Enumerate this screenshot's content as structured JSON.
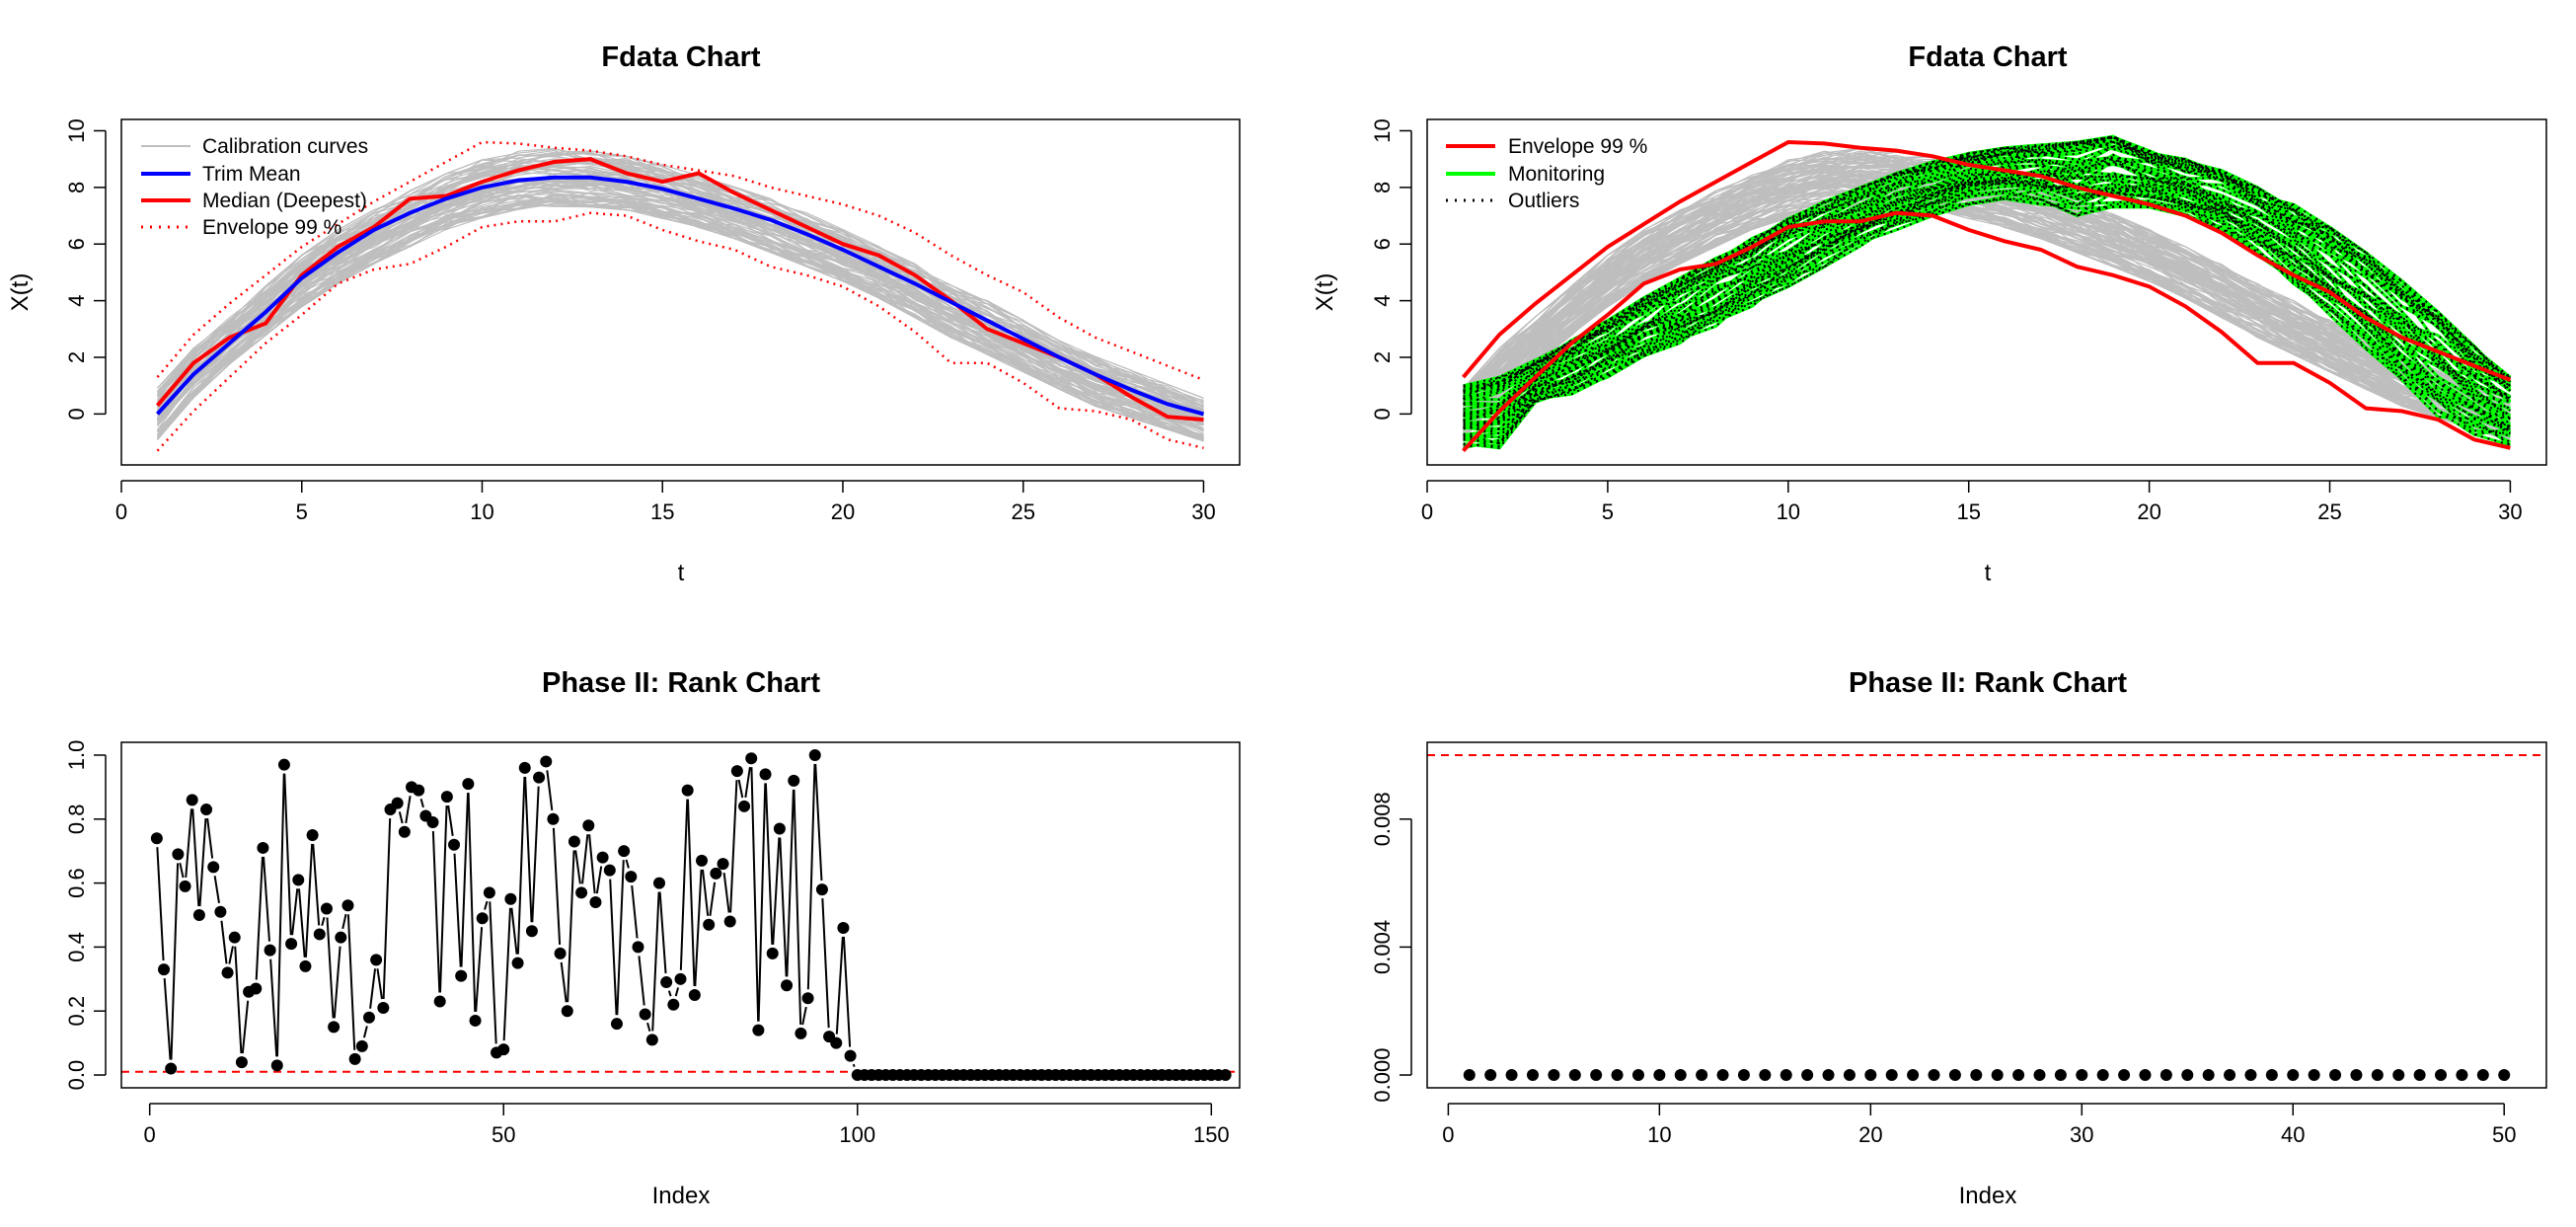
{
  "colors": {
    "calibration": "#bebebe",
    "trim_mean": "#0000ff",
    "median": "#ff0000",
    "envelope": "#ff0000",
    "monitoring": "#00ff00",
    "outliers": "#000000",
    "limit_line": "#ff0000",
    "points": "#000000"
  },
  "chart_data": [
    {
      "type": "line",
      "title": "Fdata Chart",
      "xlabel": "t",
      "ylabel": "X(t)",
      "xlim": [
        0,
        31
      ],
      "ylim": [
        -1.8,
        10.4
      ],
      "xticks": [
        0,
        5,
        10,
        15,
        20,
        25,
        30
      ],
      "yticks": [
        0,
        2,
        4,
        6,
        8,
        10
      ],
      "legend_position": "top-left",
      "legend": [
        "Calibration curves",
        "Trim Mean",
        "Median (Deepest)",
        "Envelope 99 %"
      ],
      "x": [
        1,
        2,
        3,
        4,
        5,
        6,
        7,
        8,
        9,
        10,
        11,
        12,
        13,
        14,
        15,
        16,
        17,
        18,
        19,
        20,
        21,
        22,
        23,
        24,
        25,
        26,
        27,
        28,
        29,
        30
      ],
      "calibration_band": {
        "lower": [
          -1.2,
          0.3,
          1.5,
          2.5,
          3.5,
          4.3,
          5.0,
          5.6,
          6.2,
          6.6,
          6.9,
          7.0,
          7.0,
          6.9,
          6.6,
          6.3,
          5.9,
          5.4,
          4.9,
          4.4,
          3.8,
          3.1,
          2.4,
          1.8,
          1.2,
          0.6,
          0.0,
          -0.4,
          -0.8,
          -1.2
        ],
        "upper": [
          1.2,
          2.6,
          3.7,
          4.8,
          5.9,
          6.8,
          7.5,
          8.2,
          8.8,
          9.3,
          9.6,
          9.7,
          9.6,
          9.4,
          9.1,
          8.7,
          8.3,
          7.9,
          7.4,
          6.8,
          6.2,
          5.6,
          4.9,
          4.3,
          3.6,
          2.9,
          2.3,
          1.8,
          1.3,
          0.8
        ]
      },
      "series": [
        {
          "name": "Trim Mean",
          "values": [
            0.0,
            1.4,
            2.5,
            3.6,
            4.8,
            5.7,
            6.5,
            7.1,
            7.6,
            8.0,
            8.25,
            8.35,
            8.35,
            8.2,
            7.95,
            7.6,
            7.25,
            6.85,
            6.35,
            5.8,
            5.2,
            4.6,
            3.95,
            3.3,
            2.65,
            2.0,
            1.4,
            0.85,
            0.35,
            0.0
          ]
        },
        {
          "name": "Median (Deepest)",
          "values": [
            0.3,
            1.8,
            2.7,
            3.2,
            4.9,
            5.9,
            6.6,
            7.6,
            7.7,
            8.2,
            8.6,
            8.9,
            9.0,
            8.5,
            8.2,
            8.5,
            7.8,
            7.2,
            6.6,
            6.0,
            5.6,
            4.9,
            4.0,
            3.0,
            2.5,
            2.0,
            1.4,
            0.6,
            -0.1,
            -0.2
          ]
        },
        {
          "name": "Envelope 99 % (upper)",
          "values": [
            1.3,
            2.8,
            3.9,
            4.9,
            5.9,
            6.7,
            7.5,
            8.2,
            8.9,
            9.6,
            9.55,
            9.4,
            9.3,
            9.1,
            8.8,
            8.6,
            8.4,
            8.0,
            7.7,
            7.4,
            7.0,
            6.4,
            5.6,
            4.9,
            4.3,
            3.4,
            2.7,
            2.2,
            1.7,
            1.2
          ]
        },
        {
          "name": "Envelope 99 % (lower)",
          "values": [
            -1.3,
            0.1,
            1.3,
            2.5,
            3.5,
            4.6,
            5.1,
            5.3,
            5.9,
            6.6,
            6.8,
            6.8,
            7.1,
            7.0,
            6.5,
            6.1,
            5.8,
            5.2,
            4.9,
            4.5,
            3.8,
            2.9,
            1.8,
            1.8,
            1.1,
            0.2,
            0.1,
            -0.2,
            -0.9,
            -1.2
          ]
        }
      ]
    },
    {
      "type": "line",
      "title": "Fdata Chart",
      "xlabel": "t",
      "ylabel": "X(t)",
      "xlim": [
        0,
        31
      ],
      "ylim": [
        -1.8,
        10.4
      ],
      "xticks": [
        0,
        5,
        10,
        15,
        20,
        25,
        30
      ],
      "yticks": [
        0,
        2,
        4,
        6,
        8,
        10
      ],
      "legend_position": "top-left",
      "legend": [
        "Envelope 99 %",
        "Monitoring",
        "Outliers"
      ],
      "x": [
        1,
        2,
        3,
        4,
        5,
        6,
        7,
        8,
        9,
        10,
        11,
        12,
        13,
        14,
        15,
        16,
        17,
        18,
        19,
        20,
        21,
        22,
        23,
        24,
        25,
        26,
        27,
        28,
        29,
        30
      ],
      "calibration_band": {
        "lower": [
          -1.2,
          0.3,
          1.5,
          2.5,
          3.5,
          4.3,
          5.0,
          5.6,
          6.2,
          6.6,
          6.9,
          7.0,
          7.0,
          6.9,
          6.6,
          6.3,
          5.9,
          5.4,
          4.9,
          4.4,
          3.8,
          3.1,
          2.4,
          1.8,
          1.2,
          0.6,
          0.0,
          -0.4,
          -0.8,
          -1.2
        ],
        "upper": [
          1.2,
          2.6,
          3.7,
          4.8,
          5.9,
          6.8,
          7.5,
          8.2,
          8.8,
          9.3,
          9.6,
          9.7,
          9.6,
          9.4,
          9.1,
          8.7,
          8.3,
          7.9,
          7.4,
          6.8,
          6.2,
          5.6,
          4.9,
          4.3,
          3.6,
          2.9,
          2.3,
          1.8,
          1.3,
          0.8
        ]
      },
      "monitoring_band": {
        "lower": [
          -1.2,
          -1.2,
          0.3,
          0.7,
          1.3,
          1.9,
          2.5,
          3.1,
          3.8,
          4.5,
          5.2,
          5.9,
          6.5,
          7.0,
          7.4,
          7.6,
          7.4,
          7.0,
          7.3,
          7.3,
          7.0,
          6.4,
          5.6,
          4.6,
          3.5,
          2.3,
          1.1,
          -0.1,
          -0.8,
          -1.1
        ],
        "upper": [
          1.0,
          1.3,
          1.9,
          2.6,
          3.3,
          4.1,
          4.8,
          5.5,
          6.2,
          6.9,
          7.5,
          8.0,
          8.5,
          8.9,
          9.2,
          9.4,
          9.5,
          9.6,
          9.8,
          9.3,
          9.0,
          8.6,
          8.0,
          7.4,
          6.6,
          5.7,
          4.7,
          3.6,
          2.4,
          1.3
        ]
      },
      "series": [
        {
          "name": "Envelope 99 % (upper)",
          "values": [
            1.3,
            2.8,
            3.9,
            4.9,
            5.9,
            6.7,
            7.5,
            8.2,
            8.9,
            9.6,
            9.55,
            9.4,
            9.3,
            9.1,
            8.8,
            8.6,
            8.4,
            8.0,
            7.7,
            7.4,
            7.0,
            6.4,
            5.6,
            4.9,
            4.3,
            3.4,
            2.7,
            2.2,
            1.7,
            1.2
          ]
        },
        {
          "name": "Envelope 99 % (lower)",
          "values": [
            -1.3,
            0.1,
            1.3,
            2.5,
            3.5,
            4.6,
            5.1,
            5.3,
            5.9,
            6.6,
            6.8,
            6.8,
            7.1,
            7.0,
            6.5,
            6.1,
            5.8,
            5.2,
            4.9,
            4.5,
            3.8,
            2.9,
            1.8,
            1.8,
            1.1,
            0.2,
            0.1,
            -0.2,
            -0.9,
            -1.2
          ]
        }
      ]
    },
    {
      "type": "scatter",
      "title": "Phase II: Rank Chart",
      "xlabel": "Index",
      "ylabel": "",
      "xlim": [
        -4,
        154
      ],
      "ylim": [
        -0.04,
        1.04
      ],
      "xticks": [
        0,
        50,
        100,
        150
      ],
      "yticks": [
        0.0,
        0.2,
        0.4,
        0.6,
        0.8,
        1.0
      ],
      "ytick_labels": [
        "0.0",
        "0.2",
        "0.4",
        "0.6",
        "0.8",
        "1.0"
      ],
      "control_limit": 0.01,
      "values": [
        0.74,
        0.33,
        0.02,
        0.69,
        0.59,
        0.86,
        0.5,
        0.83,
        0.65,
        0.51,
        0.32,
        0.43,
        0.04,
        0.26,
        0.27,
        0.71,
        0.39,
        0.03,
        0.97,
        0.41,
        0.61,
        0.34,
        0.75,
        0.44,
        0.52,
        0.15,
        0.43,
        0.53,
        0.05,
        0.09,
        0.18,
        0.36,
        0.21,
        0.83,
        0.85,
        0.76,
        0.9,
        0.89,
        0.81,
        0.79,
        0.23,
        0.87,
        0.72,
        0.31,
        0.91,
        0.17,
        0.49,
        0.57,
        0.07,
        0.08,
        0.55,
        0.35,
        0.96,
        0.45,
        0.93,
        0.98,
        0.8,
        0.38,
        0.2,
        0.73,
        0.57,
        0.78,
        0.54,
        0.68,
        0.64,
        0.16,
        0.7,
        0.62,
        0.4,
        0.19,
        0.11,
        0.6,
        0.29,
        0.22,
        0.3,
        0.89,
        0.25,
        0.67,
        0.47,
        0.63,
        0.66,
        0.48,
        0.95,
        0.84,
        0.99,
        0.14,
        0.94,
        0.38,
        0.77,
        0.28,
        0.92,
        0.13,
        0.24,
        1.0,
        0.58,
        0.12,
        0.1,
        0.46,
        0.06,
        0,
        0,
        0,
        0,
        0,
        0,
        0,
        0,
        0,
        0,
        0,
        0,
        0,
        0,
        0,
        0,
        0,
        0,
        0,
        0,
        0,
        0,
        0,
        0,
        0,
        0,
        0,
        0,
        0,
        0,
        0,
        0,
        0,
        0,
        0,
        0,
        0,
        0,
        0,
        0,
        0,
        0,
        0,
        0,
        0,
        0,
        0,
        0,
        0,
        0,
        0,
        0,
        0
      ]
    },
    {
      "type": "scatter",
      "title": "Phase II: Rank Chart",
      "xlabel": "Index",
      "ylabel": "",
      "xlim": [
        -1,
        52
      ],
      "ylim": [
        -0.0004,
        0.0104
      ],
      "xticks": [
        0,
        10,
        20,
        30,
        40,
        50
      ],
      "yticks": [
        0.0,
        0.004,
        0.008
      ],
      "ytick_labels": [
        "0.000",
        "0.004",
        "0.008"
      ],
      "control_limit": 0.01,
      "values": [
        0,
        0,
        0,
        0,
        0,
        0,
        0,
        0,
        0,
        0,
        0,
        0,
        0,
        0,
        0,
        0,
        0,
        0,
        0,
        0,
        0,
        0,
        0,
        0,
        0,
        0,
        0,
        0,
        0,
        0,
        0,
        0,
        0,
        0,
        0,
        0,
        0,
        0,
        0,
        0,
        0,
        0,
        0,
        0,
        0,
        0,
        0,
        0,
        0,
        0
      ]
    }
  ]
}
